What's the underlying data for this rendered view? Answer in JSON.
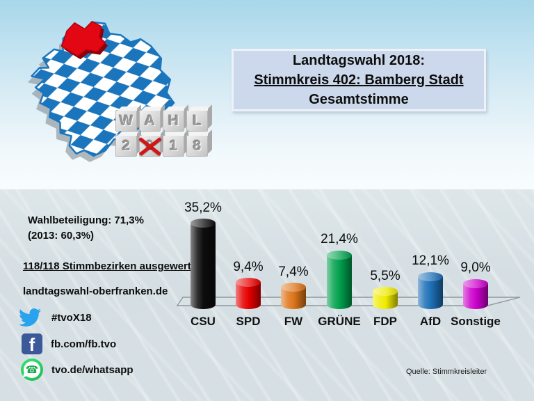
{
  "logo": {
    "map": "bavaria-map-with-oberfranken-highlighted",
    "map_flag_blue": "#1b75bc",
    "region_red": "#e30613",
    "blocks_row1": [
      "W",
      "A",
      "H",
      "L"
    ],
    "blocks_row2": [
      "2",
      "0",
      "1",
      "8"
    ],
    "crossed_block_row2_index": 1
  },
  "title_box": {
    "line1": "Landtagswahl 2018:",
    "line2": "Stimmkreis 402: Bamberg Stadt",
    "line3": "Gesamtstimme"
  },
  "info": {
    "turnout_line1": "Wahlbeteiligung: 71,3%",
    "turnout_line2": "(2013: 60,3%)",
    "districts": "118/118 Stimmbezirken ausgewertet",
    "website": "landtagswahl-oberfranken.de"
  },
  "social": {
    "twitter": {
      "icon": "twitter-bird-icon",
      "color": "#2aa3ef",
      "label": "#tvoX18"
    },
    "facebook": {
      "icon": "facebook-f-icon",
      "color": "#3b5998",
      "label": "fb.com/fb.tvo"
    },
    "whatsapp": {
      "icon": "whatsapp-icon",
      "color": "#25d366",
      "label": "tvo.de/whatsapp"
    }
  },
  "source": "Quelle: Stimmkreisleiter",
  "chart_data": {
    "type": "bar",
    "style": "3d-cylinder",
    "title": "Landtagswahl 2018 – Stimmkreis 402: Bamberg Stadt – Gesamtstimme",
    "categories": [
      "CSU",
      "SPD",
      "FW",
      "GRÜNE",
      "FDP",
      "AfD",
      "Sonstige"
    ],
    "values": [
      35.2,
      9.4,
      7.4,
      21.4,
      5.5,
      12.1,
      9.0
    ],
    "value_labels": [
      "35,2%",
      "9,4%",
      "7,4%",
      "21,4%",
      "5,5%",
      "12,1%",
      "9,0%"
    ],
    "colors": [
      "#0d0d0d",
      "#e60000",
      "#dd7519",
      "#00a04d",
      "#f0ec00",
      "#1d70b7",
      "#cc00cc"
    ],
    "xlabel": "",
    "ylabel": "",
    "grid": false,
    "legend": false,
    "data_labels": true
  }
}
